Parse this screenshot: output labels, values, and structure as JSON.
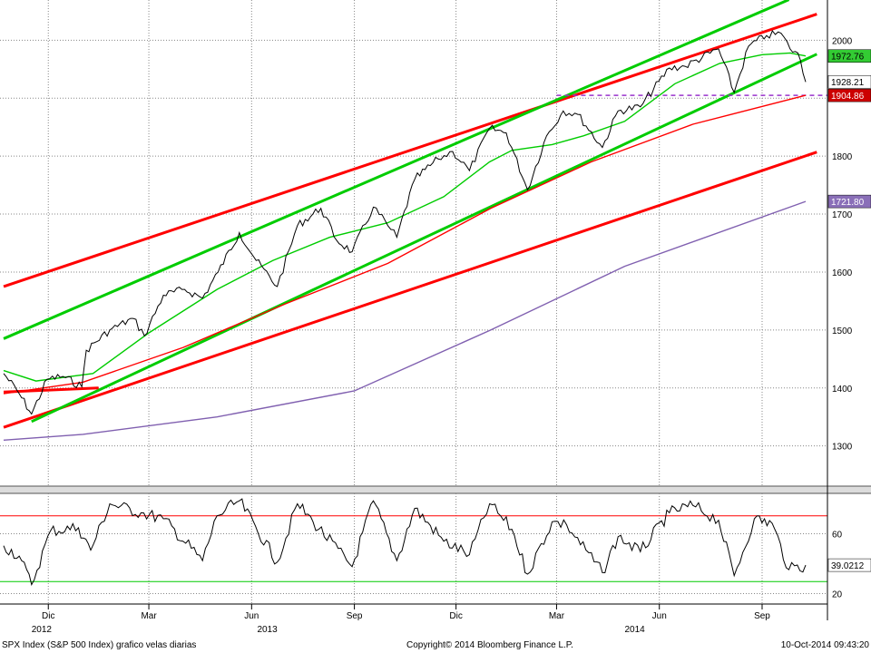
{
  "footer": {
    "left": "SPX Index (S&P 500 Index) grafico velas diarias",
    "center": "Copyright© 2014 Bloomberg Finance L.P.",
    "right": "10-Oct-2014 09:43:20"
  },
  "chart_data": [
    {
      "type": "line",
      "subtype": "candlestick-with-overlays",
      "x_range": [
        "2012-10-22",
        "2014-10-10"
      ],
      "x_tick_labels": [
        "Dic",
        "Mar",
        "Jun",
        "Sep",
        "Dic",
        "Mar",
        "Jun",
        "Sep"
      ],
      "x_tick_dates": [
        "2012-12-01",
        "2013-03-01",
        "2013-06-01",
        "2013-09-01",
        "2013-12-01",
        "2014-03-01",
        "2014-06-01",
        "2014-09-01"
      ],
      "year_labels": [
        {
          "label": "2012",
          "date": "2012-11-25"
        },
        {
          "label": "2013",
          "date": "2013-06-15"
        },
        {
          "label": "2014",
          "date": "2014-05-10"
        }
      ],
      "ylim": [
        1240,
        2060
      ],
      "y_ticks": [
        1300,
        1400,
        1500,
        1600,
        1700,
        1800,
        1900,
        2000
      ],
      "grid": "horizontal-dotted",
      "price": {
        "x": [
          "2012-10-22",
          "2012-11-05",
          "2012-11-16",
          "2012-11-30",
          "2012-12-14",
          "2012-12-31",
          "2013-01-04",
          "2013-01-25",
          "2013-02-15",
          "2013-02-25",
          "2013-03-14",
          "2013-04-02",
          "2013-04-18",
          "2013-05-02",
          "2013-05-21",
          "2013-06-05",
          "2013-06-24",
          "2013-07-12",
          "2013-08-02",
          "2013-08-16",
          "2013-08-30",
          "2013-09-18",
          "2013-10-01",
          "2013-10-09",
          "2013-10-25",
          "2013-11-15",
          "2013-11-28",
          "2013-12-13",
          "2013-12-31",
          "2014-01-15",
          "2014-02-03",
          "2014-02-20",
          "2014-03-07",
          "2014-03-20",
          "2014-04-11",
          "2014-04-25",
          "2014-05-15",
          "2014-06-10",
          "2014-06-24",
          "2014-07-24",
          "2014-08-07",
          "2014-08-20",
          "2014-09-05",
          "2014-09-18",
          "2014-09-26",
          "2014-10-03",
          "2014-10-10"
        ],
        "values": [
          1425,
          1390,
          1355,
          1415,
          1420,
          1402,
          1465,
          1500,
          1520,
          1490,
          1560,
          1570,
          1555,
          1600,
          1668,
          1620,
          1575,
          1680,
          1710,
          1655,
          1635,
          1712,
          1680,
          1660,
          1760,
          1795,
          1808,
          1775,
          1848,
          1840,
          1742,
          1835,
          1878,
          1872,
          1815,
          1878,
          1885,
          1952,
          1955,
          1985,
          1910,
          1990,
          2008,
          2012,
          1985,
          1978,
          1928
        ]
      },
      "lines": [
        {
          "name": "",
          "color": "#00cc00",
          "style": "moving-average",
          "x": [
            "2012-10-22",
            "2012-11-20",
            "2013-01-10",
            "2013-03-01",
            "2013-05-01",
            "2013-06-20",
            "2013-08-10",
            "2013-10-01",
            "2013-11-20",
            "2013-12-31",
            "2014-01-20",
            "2014-02-25",
            "2014-03-25",
            "2014-05-01",
            "2014-06-15",
            "2014-07-25",
            "2014-09-01",
            "2014-09-26",
            "2014-10-10"
          ],
          "values": [
            1430,
            1412,
            1425,
            1495,
            1570,
            1620,
            1660,
            1685,
            1730,
            1790,
            1810,
            1820,
            1835,
            1860,
            1925,
            1960,
            1975,
            1978,
            1972.76
          ]
        },
        {
          "name": "",
          "color": "#ff0000",
          "style": "moving-average",
          "x": [
            "2012-10-22",
            "2013-01-01",
            "2013-04-01",
            "2013-07-01",
            "2013-10-01",
            "2014-01-01",
            "2014-04-01",
            "2014-07-01",
            "2014-10-10"
          ],
          "values": [
            1390,
            1410,
            1470,
            1545,
            1615,
            1710,
            1790,
            1855,
            1904.86
          ]
        },
        {
          "name": "",
          "color": "#8060b0",
          "style": "moving-average",
          "x": [
            "2012-10-22",
            "2013-01-01",
            "2013-05-01",
            "2013-09-01",
            "2014-01-01",
            "2014-05-01",
            "2014-10-10"
          ],
          "values": [
            1310,
            1320,
            1350,
            1395,
            1500,
            1610,
            1721.8
          ]
        }
      ],
      "trendlines": [
        {
          "color": "#ff0000",
          "x": [
            "2012-10-22",
            "2014-10-20"
          ],
          "values": [
            1575,
            2045
          ]
        },
        {
          "color": "#ff0000",
          "x": [
            "2012-10-22",
            "2014-10-20"
          ],
          "values": [
            1332,
            1807
          ]
        },
        {
          "color": "#00cc00",
          "x": [
            "2012-10-22",
            "2014-09-25"
          ],
          "values": [
            1485,
            2070
          ]
        },
        {
          "color": "#00cc00",
          "x": [
            "2012-11-16",
            "2014-10-20"
          ],
          "values": [
            1342,
            1976
          ]
        },
        {
          "color": "#ff0000",
          "x": [
            "2012-10-22",
            "2013-01-15"
          ],
          "values": [
            1393,
            1400
          ]
        }
      ],
      "hline": {
        "color": "#9933cc",
        "style": "dashed",
        "value": 1904.86,
        "from": "2014-03-01"
      },
      "value_tags": [
        {
          "value": 1972.76,
          "label": "1972.76",
          "bg": "#33cc33",
          "fg": "#000000"
        },
        {
          "value": 1928.21,
          "label": "1928.21",
          "bg": "#ffffff",
          "fg": "#000000"
        },
        {
          "value": 1904.86,
          "label": "1904.86",
          "bg": "#cc0000",
          "fg": "#ffffff"
        },
        {
          "value": 1721.8,
          "label": "1721.80",
          "bg": "#8a6fb8",
          "fg": "#ffffff"
        }
      ]
    },
    {
      "type": "line",
      "subtype": "oscillator",
      "ylim": [
        13,
        87
      ],
      "y_ticks": [
        20,
        60
      ],
      "upper_line": {
        "value": 72,
        "color": "#ff0000"
      },
      "lower_line": {
        "value": 28,
        "color": "#00cc00"
      },
      "oscillator": {
        "x": [
          "2012-10-22",
          "2012-11-05",
          "2012-11-16",
          "2012-12-03",
          "2012-12-28",
          "2013-01-08",
          "2013-01-25",
          "2013-02-22",
          "2013-03-14",
          "2013-04-18",
          "2013-05-01",
          "2013-05-21",
          "2013-06-24",
          "2013-07-12",
          "2013-07-26",
          "2013-08-30",
          "2013-09-18",
          "2013-10-09",
          "2013-10-25",
          "2013-11-20",
          "2013-12-13",
          "2013-12-31",
          "2014-01-20",
          "2014-02-03",
          "2014-02-25",
          "2014-03-10",
          "2014-04-11",
          "2014-04-25",
          "2014-05-15",
          "2014-06-10",
          "2014-07-01",
          "2014-07-24",
          "2014-08-07",
          "2014-08-25",
          "2014-09-10",
          "2014-09-25",
          "2014-10-10"
        ],
        "values": [
          52,
          45,
          26,
          62,
          64,
          49,
          80,
          74,
          70,
          42,
          72,
          82,
          41,
          80,
          68,
          38,
          82,
          42,
          77,
          55,
          46,
          80,
          63,
          33,
          68,
          66,
          34,
          58,
          48,
          74,
          79,
          69,
          32,
          70,
          67,
          36,
          39.02
        ]
      },
      "value_tags": [
        {
          "value": 39.0212,
          "label": "39.0212",
          "bg": "#ffffff",
          "fg": "#000000"
        }
      ]
    }
  ]
}
